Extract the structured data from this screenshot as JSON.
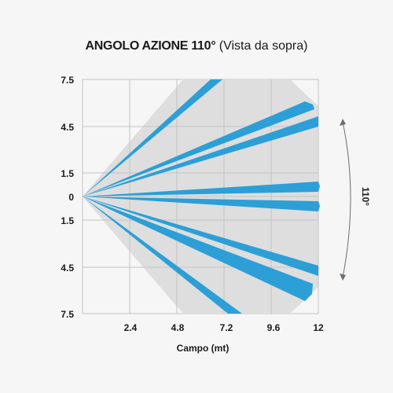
{
  "title": {
    "bold": "ANGOLO AZIONE 110°",
    "normal": "(Vista da sopra)"
  },
  "diagram": {
    "x_axis_label": "Campo (mt)",
    "x_ticks": [
      "2.4",
      "4.8",
      "7.2",
      "9.6",
      "12"
    ],
    "y_ticks": [
      "7.5",
      "4.5",
      "1.5",
      "0",
      "1.5",
      "4.5",
      "7.5"
    ],
    "angle_label": "110°",
    "beam_color": "#2c9fd6",
    "zone_color": "#dedede",
    "grid_color": "#c4c4c4",
    "beam_count": 8
  }
}
